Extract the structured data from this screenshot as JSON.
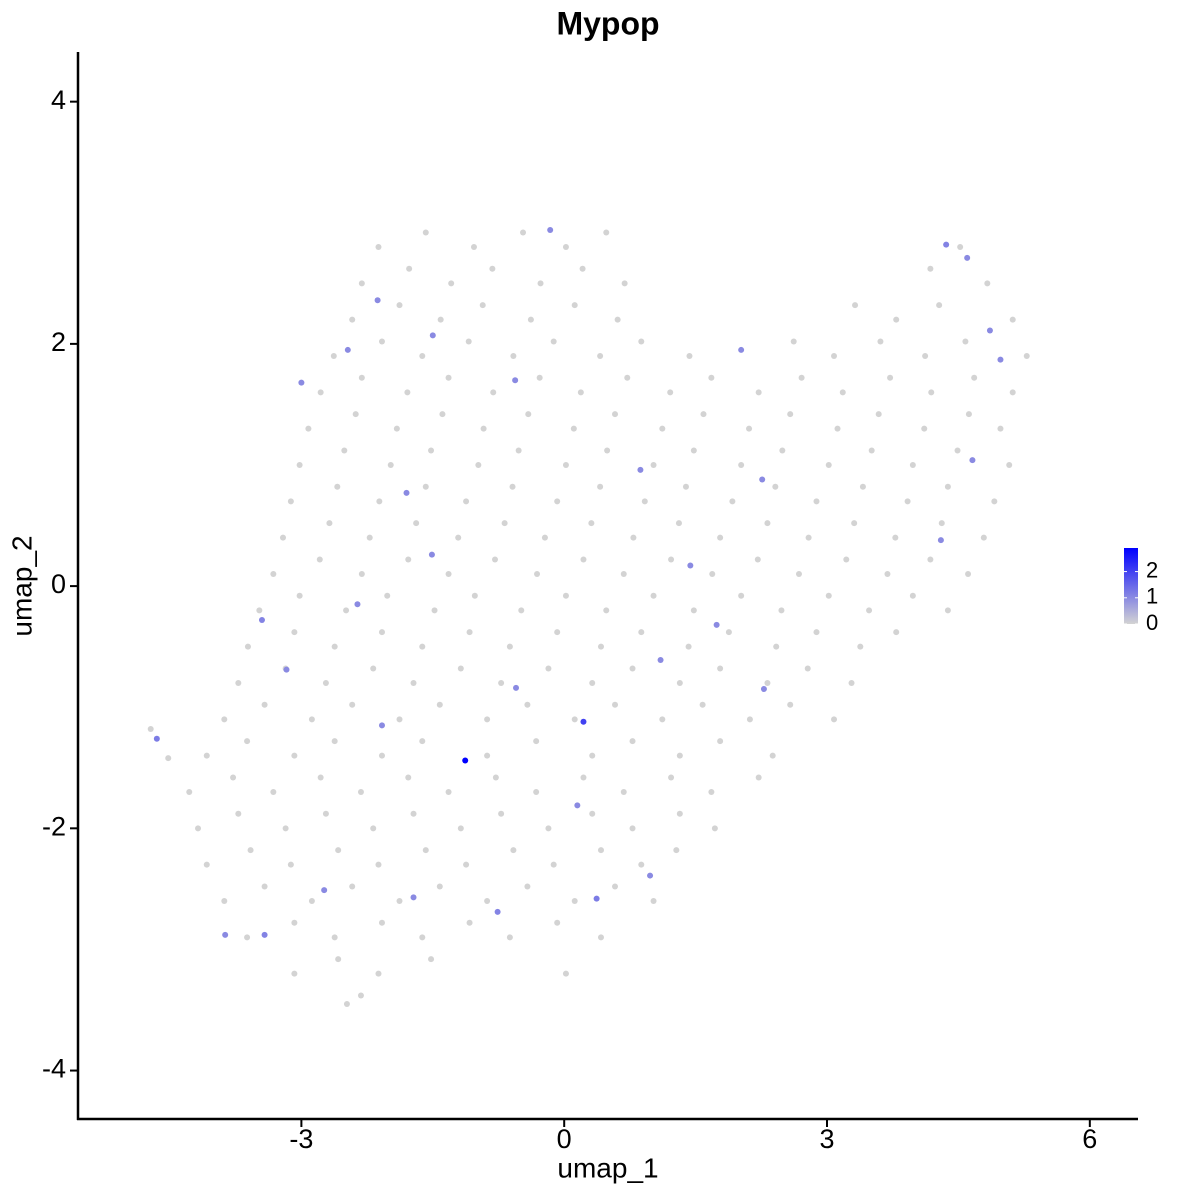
{
  "chart_data": {
    "type": "scatter",
    "title": "Mypop",
    "x_label": "umap_1",
    "y_label": "umap_2",
    "xlim": [
      -5.55,
      6.55
    ],
    "ylim": [
      -4.4,
      4.41
    ],
    "xticks": [
      -3,
      0,
      3,
      6
    ],
    "yticks": [
      -4,
      -2,
      0,
      2,
      4
    ],
    "x": [
      -2.12,
      -1.58,
      -1.03,
      -0.47,
      0.02,
      0.48,
      4.52,
      -2.31,
      -1.77,
      -1.29,
      -0.82,
      -0.27,
      0.21,
      0.69,
      4.18,
      4.83,
      -2.42,
      -1.88,
      -1.41,
      -0.93,
      -0.38,
      0.12,
      0.61,
      3.32,
      3.79,
      4.28,
      5.12,
      -2.63,
      -2.08,
      -1.62,
      -1.09,
      -0.58,
      -0.12,
      0.41,
      0.88,
      1.43,
      2.62,
      3.08,
      3.61,
      4.12,
      4.58,
      5.28,
      -2.78,
      -2.31,
      -1.79,
      -1.32,
      -0.81,
      -0.28,
      0.19,
      0.72,
      1.21,
      1.68,
      2.22,
      2.71,
      3.18,
      3.72,
      4.19,
      4.68,
      5.12,
      -2.92,
      -2.38,
      -1.91,
      -1.39,
      -0.92,
      -0.41,
      0.11,
      0.58,
      1.12,
      1.59,
      2.11,
      2.58,
      3.12,
      3.59,
      4.11,
      4.62,
      4.98,
      -3.02,
      -2.51,
      -1.98,
      -1.52,
      -0.98,
      -0.52,
      0.02,
      0.49,
      1.02,
      1.48,
      2.02,
      2.49,
      3.02,
      3.51,
      3.98,
      4.49,
      5.08,
      -3.12,
      -2.59,
      -2.11,
      -1.58,
      -1.12,
      -0.59,
      -0.08,
      0.41,
      0.92,
      1.39,
      1.92,
      2.41,
      2.88,
      3.41,
      3.92,
      4.38,
      4.91,
      -3.21,
      -2.68,
      -2.22,
      -1.69,
      -1.21,
      -0.68,
      -0.22,
      0.31,
      0.79,
      1.31,
      1.78,
      2.32,
      2.79,
      3.31,
      3.78,
      4.31,
      4.79,
      -3.32,
      -2.79,
      -2.31,
      -1.78,
      -1.32,
      -0.79,
      -0.31,
      0.22,
      0.68,
      1.22,
      1.69,
      2.21,
      2.68,
      3.22,
      3.69,
      4.18,
      4.61,
      -3.48,
      -3.02,
      -2.49,
      -2.02,
      -1.48,
      -1.02,
      -0.49,
      0.02,
      0.48,
      1.02,
      1.48,
      2.02,
      2.48,
      3.02,
      3.48,
      3.98,
      4.38,
      -3.61,
      -3.08,
      -2.62,
      -2.08,
      -1.62,
      -1.08,
      -0.62,
      -0.08,
      0.42,
      0.88,
      1.42,
      1.88,
      2.42,
      2.88,
      3.38,
      3.79,
      -3.72,
      -3.18,
      -2.72,
      -2.18,
      -1.72,
      -1.18,
      -0.72,
      -0.18,
      0.32,
      0.78,
      1.32,
      1.78,
      2.32,
      2.78,
      3.28,
      -3.88,
      -3.42,
      -2.88,
      -2.42,
      -1.88,
      -1.42,
      -0.88,
      -0.42,
      0.12,
      0.58,
      1.12,
      1.58,
      2.12,
      2.58,
      3.08,
      -4.08,
      -3.62,
      -3.08,
      -2.62,
      -2.08,
      -1.62,
      -0.88,
      -0.32,
      0.32,
      0.78,
      1.32,
      1.78,
      2.38,
      -4.28,
      -3.78,
      -3.32,
      -2.78,
      -2.32,
      -1.78,
      -1.32,
      -0.78,
      -0.32,
      0.22,
      0.68,
      1.22,
      1.68,
      2.22,
      -4.18,
      -3.72,
      -3.18,
      -2.72,
      -2.18,
      -1.72,
      -1.18,
      -0.72,
      -0.18,
      0.32,
      0.78,
      1.32,
      1.72,
      -4.08,
      -3.58,
      -3.12,
      -2.58,
      -2.12,
      -1.58,
      -1.12,
      -0.58,
      -0.12,
      0.42,
      0.88,
      1.28,
      -3.88,
      -3.42,
      -2.88,
      -2.42,
      -1.88,
      -1.42,
      -0.88,
      -0.42,
      0.12,
      0.58,
      1.02,
      -3.62,
      -3.08,
      -2.62,
      -2.08,
      -1.62,
      -1.08,
      -0.62,
      -0.08,
      0.42,
      -3.08,
      -2.58,
      -2.12,
      -1.52,
      0.02,
      -2.48,
      -2.32,
      -4.72,
      -4.52,
      -1.13,
      0.22,
      -4.65,
      -3.0,
      -3.45,
      -3.17,
      -2.36,
      -1.8,
      -1.51,
      -0.76,
      0.37,
      0.98,
      2.02,
      4.36,
      4.6,
      4.86,
      4.98,
      4.66,
      4.3,
      1.44,
      1.74,
      2.28,
      -0.55,
      0.15,
      -2.08,
      -3.42,
      -3.87,
      -2.74,
      -1.72,
      -0.16,
      -0.56,
      -1.5,
      0.87,
      1.1,
      -2.47,
      -2.13,
      2.26
    ],
    "y": [
      2.8,
      2.92,
      2.8,
      2.92,
      2.8,
      2.92,
      2.8,
      2.5,
      2.62,
      2.5,
      2.62,
      2.5,
      2.62,
      2.5,
      2.62,
      2.5,
      2.2,
      2.32,
      2.2,
      2.32,
      2.2,
      2.32,
      2.2,
      2.32,
      2.2,
      2.32,
      2.2,
      1.9,
      2.02,
      1.9,
      2.02,
      1.9,
      2.02,
      1.9,
      2.02,
      1.9,
      2.02,
      1.9,
      2.02,
      1.9,
      2.02,
      1.9,
      1.6,
      1.72,
      1.6,
      1.72,
      1.6,
      1.72,
      1.6,
      1.72,
      1.6,
      1.72,
      1.6,
      1.72,
      1.6,
      1.72,
      1.6,
      1.72,
      1.6,
      1.3,
      1.42,
      1.3,
      1.42,
      1.3,
      1.42,
      1.3,
      1.42,
      1.3,
      1.42,
      1.3,
      1.42,
      1.3,
      1.42,
      1.3,
      1.42,
      1.3,
      1.0,
      1.12,
      1.0,
      1.12,
      1.0,
      1.12,
      1.0,
      1.12,
      1.0,
      1.12,
      1.0,
      1.12,
      1.0,
      1.12,
      1.0,
      1.12,
      1.0,
      0.7,
      0.82,
      0.7,
      0.82,
      0.7,
      0.82,
      0.7,
      0.82,
      0.7,
      0.82,
      0.7,
      0.82,
      0.7,
      0.82,
      0.7,
      0.82,
      0.7,
      0.4,
      0.52,
      0.4,
      0.52,
      0.4,
      0.52,
      0.4,
      0.52,
      0.4,
      0.52,
      0.4,
      0.52,
      0.4,
      0.52,
      0.4,
      0.52,
      0.4,
      0.1,
      0.22,
      0.1,
      0.22,
      0.1,
      0.22,
      0.1,
      0.22,
      0.1,
      0.22,
      0.1,
      0.22,
      0.1,
      0.22,
      0.1,
      0.22,
      0.1,
      -0.2,
      -0.08,
      -0.2,
      -0.08,
      -0.2,
      -0.08,
      -0.2,
      -0.08,
      -0.2,
      -0.08,
      -0.2,
      -0.08,
      -0.2,
      -0.08,
      -0.2,
      -0.08,
      -0.2,
      -0.5,
      -0.38,
      -0.5,
      -0.38,
      -0.5,
      -0.38,
      -0.5,
      -0.38,
      -0.5,
      -0.38,
      -0.5,
      -0.38,
      -0.5,
      -0.38,
      -0.5,
      -0.38,
      -0.8,
      -0.68,
      -0.8,
      -0.68,
      -0.8,
      -0.68,
      -0.8,
      -0.68,
      -0.8,
      -0.68,
      -0.8,
      -0.68,
      -0.8,
      -0.68,
      -0.8,
      -1.1,
      -0.98,
      -1.1,
      -0.98,
      -1.1,
      -0.98,
      -1.1,
      -0.98,
      -1.1,
      -0.98,
      -1.1,
      -0.98,
      -1.1,
      -0.98,
      -1.1,
      -1.4,
      -1.28,
      -1.4,
      -1.28,
      -1.4,
      -1.28,
      -1.4,
      -1.28,
      -1.4,
      -1.28,
      -1.4,
      -1.28,
      -1.4,
      -1.7,
      -1.58,
      -1.7,
      -1.58,
      -1.7,
      -1.58,
      -1.7,
      -1.58,
      -1.7,
      -1.58,
      -1.7,
      -1.58,
      -1.7,
      -1.58,
      -2.0,
      -1.88,
      -2.0,
      -1.88,
      -2.0,
      -1.88,
      -2.0,
      -1.88,
      -2.0,
      -1.88,
      -2.0,
      -1.88,
      -2.0,
      -2.3,
      -2.18,
      -2.3,
      -2.18,
      -2.3,
      -2.18,
      -2.3,
      -2.18,
      -2.3,
      -2.18,
      -2.3,
      -2.18,
      -2.6,
      -2.48,
      -2.6,
      -2.48,
      -2.6,
      -2.48,
      -2.6,
      -2.48,
      -2.6,
      -2.48,
      -2.6,
      -2.9,
      -2.78,
      -2.9,
      -2.78,
      -2.9,
      -2.78,
      -2.9,
      -2.78,
      -2.9,
      -3.2,
      -3.08,
      -3.2,
      -3.08,
      -3.2,
      -3.45,
      -3.38,
      -1.18,
      -1.42,
      -1.44,
      -1.12,
      -1.26,
      1.68,
      -0.28,
      -0.69,
      -0.15,
      0.77,
      0.26,
      -2.69,
      -2.58,
      -2.39,
      1.95,
      2.82,
      2.71,
      2.11,
      1.87,
      1.04,
      0.38,
      0.17,
      -0.32,
      -0.85,
      -0.84,
      -1.81,
      -1.15,
      -2.88,
      -2.88,
      -2.51,
      -2.57,
      2.94,
      1.7,
      2.07,
      0.96,
      -0.61,
      1.95,
      2.36,
      0.88
    ],
    "expression": [
      0,
      0,
      0,
      0,
      0,
      0,
      0,
      0,
      0,
      0,
      0,
      0,
      0,
      0,
      0,
      0,
      0,
      0,
      0,
      0,
      0,
      0,
      0,
      0,
      0,
      0,
      0,
      0,
      0,
      0,
      0,
      0,
      0,
      0,
      0,
      0,
      0,
      0,
      0,
      0,
      0,
      0,
      0,
      0,
      0,
      0,
      0,
      0,
      0,
      0,
      0,
      0,
      0,
      0,
      0,
      0,
      0,
      0,
      0,
      0,
      0,
      0,
      0,
      0,
      0,
      0,
      0,
      0,
      0,
      0,
      0,
      0,
      0,
      0,
      0,
      0,
      0,
      0,
      0,
      0,
      0,
      0,
      0,
      0,
      0,
      0,
      0,
      0,
      0,
      0,
      0,
      0,
      0,
      0,
      0,
      0,
      0,
      0,
      0,
      0,
      0,
      0,
      0,
      0,
      0,
      0,
      0,
      0,
      0,
      0,
      0,
      0,
      0,
      0,
      0,
      0,
      0,
      0,
      0,
      0,
      0,
      0,
      0,
      0,
      0,
      0,
      0,
      0,
      0,
      0,
      0,
      0,
      0,
      0,
      0,
      0,
      0,
      0,
      0,
      0,
      0,
      0,
      0,
      0,
      0,
      0,
      0,
      0,
      0,
      0,
      0,
      0,
      0,
      0,
      0,
      0,
      0,
      0,
      0,
      0,
      0,
      0,
      0,
      0,
      0,
      0,
      0,
      0,
      0,
      0,
      0,
      0,
      0,
      0,
      0,
      0,
      0,
      0,
      0,
      0,
      0,
      0,
      0,
      0,
      0,
      0,
      0,
      0,
      0,
      0,
      0,
      0,
      0,
      0,
      0,
      0,
      0,
      0,
      0,
      0,
      0,
      0,
      0,
      0,
      0,
      0,
      0,
      0,
      0,
      0,
      0,
      0,
      0,
      0,
      0,
      0,
      0,
      0,
      0,
      0,
      0,
      0,
      0,
      0,
      0,
      0,
      0,
      0,
      0,
      0,
      0,
      0,
      0,
      0,
      0,
      0,
      0,
      0,
      0,
      0,
      0,
      0,
      0,
      0,
      0,
      0,
      0,
      0,
      0,
      0,
      0,
      0,
      0,
      0,
      0,
      0,
      0,
      0,
      0,
      0,
      0,
      0,
      0,
      0,
      0,
      0,
      0,
      0,
      0,
      0,
      0,
      0,
      0,
      0,
      0,
      0,
      0,
      0,
      0,
      0,
      0,
      0,
      0,
      0,
      0,
      0,
      0,
      0,
      2.9,
      2.0,
      1.2,
      1.0,
      1.1,
      1.0,
      1.0,
      1.0,
      1.0,
      1.1,
      1.2,
      1.0,
      1.0,
      1.1,
      1.0,
      1.0,
      1.0,
      1.0,
      1.0,
      1.0,
      1.0,
      1.0,
      1.0,
      1.0,
      1.0,
      1.1,
      1.0,
      1.0,
      1.0,
      1.0,
      1.0,
      1.0,
      1.0,
      1.0,
      1.0,
      1.0,
      1.0
    ],
    "colorbar": {
      "colors": [
        "#d3d3d3",
        "#0000ff"
      ],
      "lim": [
        0,
        2.9
      ],
      "ticks": [
        0,
        1,
        2
      ]
    }
  }
}
